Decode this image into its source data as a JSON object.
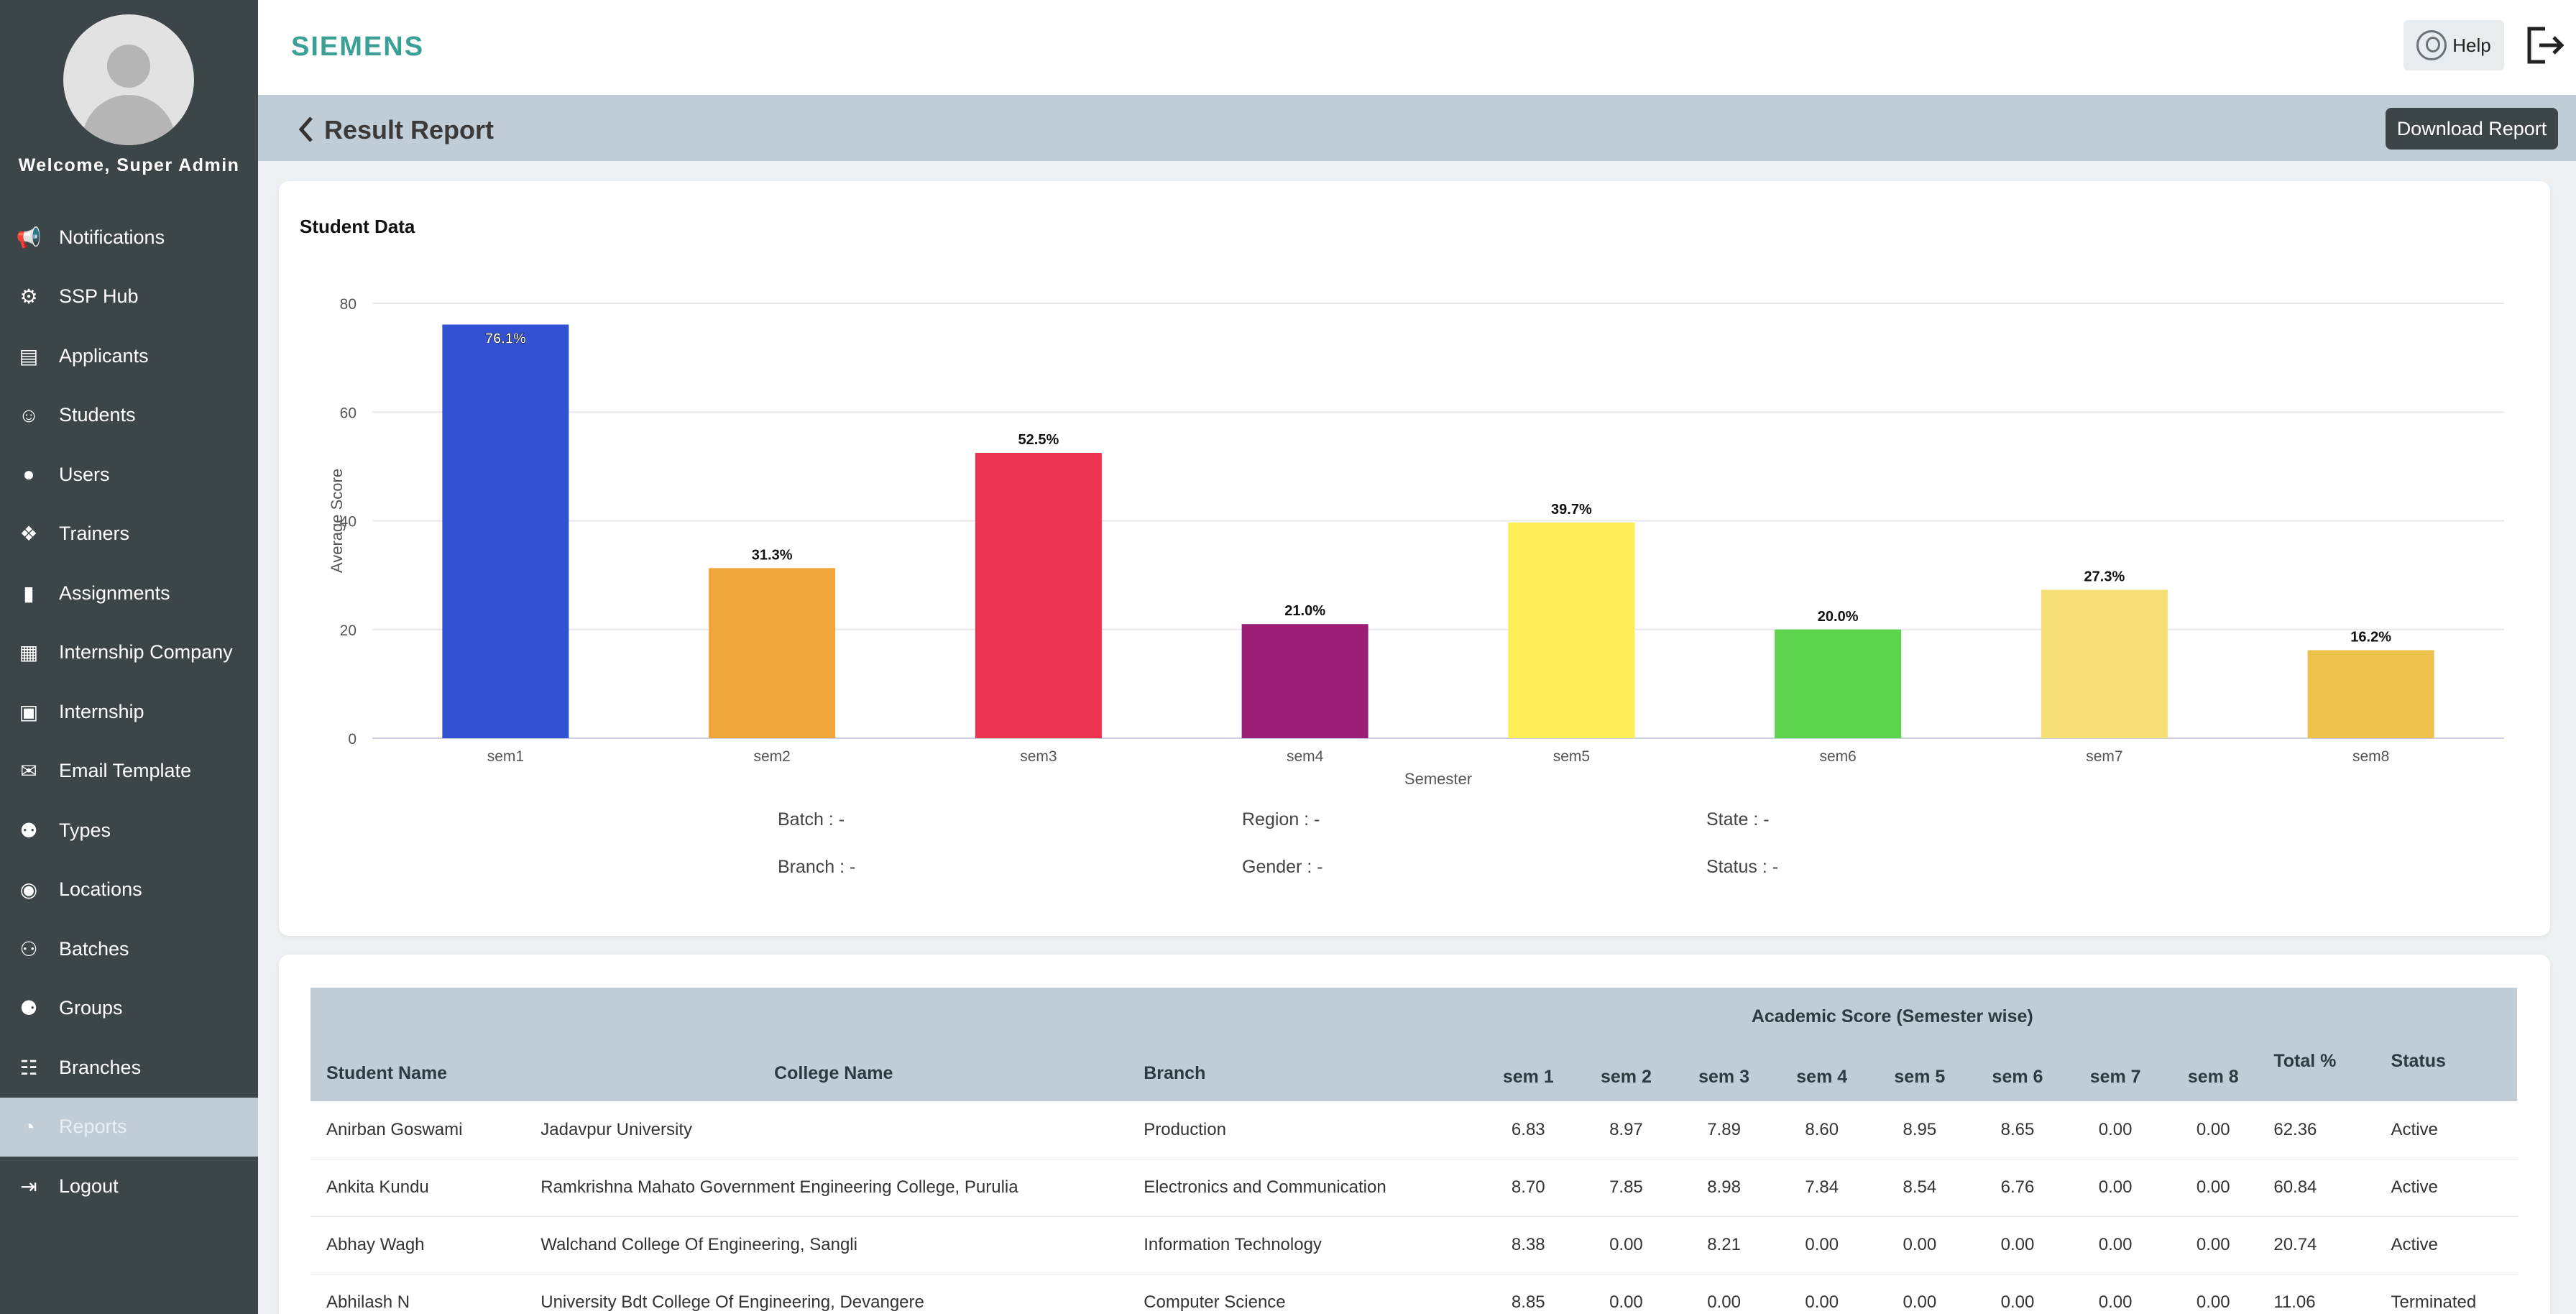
{
  "sidebar": {
    "welcome": "Welcome, Super Admin",
    "items": [
      {
        "label": "Notifications",
        "icon": "megaphone-icon"
      },
      {
        "label": "SSP Hub",
        "icon": "hub-icon"
      },
      {
        "label": "Applicants",
        "icon": "applicants-icon"
      },
      {
        "label": "Students",
        "icon": "students-icon"
      },
      {
        "label": "Users",
        "icon": "user-icon"
      },
      {
        "label": "Trainers",
        "icon": "trainer-icon"
      },
      {
        "label": "Assignments",
        "icon": "document-icon"
      },
      {
        "label": "Internship Company",
        "icon": "building-icon"
      },
      {
        "label": "Internship",
        "icon": "briefcase-icon"
      },
      {
        "label": "Email Template",
        "icon": "envelope-icon"
      },
      {
        "label": "Types",
        "icon": "types-icon"
      },
      {
        "label": "Locations",
        "icon": "location-pin-icon"
      },
      {
        "label": "Batches",
        "icon": "batches-icon"
      },
      {
        "label": "Groups",
        "icon": "groups-icon"
      },
      {
        "label": "Branches",
        "icon": "sitemap-icon"
      },
      {
        "label": "Reports",
        "icon": "pie-chart-icon",
        "active": true
      },
      {
        "label": "Logout",
        "icon": "logout-icon"
      }
    ]
  },
  "header": {
    "logo": "SIEMENS",
    "help_label": "Help"
  },
  "titlebar": {
    "title": "Result Report",
    "download_label": "Download Report"
  },
  "chart_card": {
    "title": "Student Data"
  },
  "chart_data": {
    "type": "bar",
    "categories": [
      "sem1",
      "sem2",
      "sem3",
      "sem4",
      "sem5",
      "sem6",
      "sem7",
      "sem8"
    ],
    "values": [
      76.1,
      31.3,
      52.5,
      21.0,
      39.7,
      20.0,
      27.3,
      16.2
    ],
    "data_labels": [
      "76.1%",
      "31.3%",
      "52.5%",
      "21.0%",
      "39.7%",
      "20.0%",
      "27.3%",
      "16.2%"
    ],
    "colors": [
      "#3251d3",
      "#f0a53b",
      "#ec3350",
      "#9c1f77",
      "#fdee55",
      "#5bd34c",
      "#f6df74",
      "#ecc24d"
    ],
    "xlabel": "Semester",
    "ylabel": "Average Score",
    "ylim": [
      0,
      80
    ],
    "yticks": [
      "0",
      "20",
      "40",
      "60",
      "80"
    ],
    "grid": true
  },
  "filters": {
    "batch": "Batch  :  -",
    "region": "Region :  -",
    "state": "State :  -",
    "branch": "Branch :  -",
    "gender": "Gender :  -",
    "status": "Status :  -"
  },
  "table": {
    "group_header": "Academic Score (Semester wise)",
    "headers": {
      "student_name": "Student Name",
      "college_name": "College Name",
      "branch": "Branch",
      "sems": [
        "sem 1",
        "sem 2",
        "sem 3",
        "sem 4",
        "sem 5",
        "sem 6",
        "sem 7",
        "sem 8"
      ],
      "total": "Total %",
      "status": "Status"
    },
    "rows": [
      {
        "name": "Anirban Goswami",
        "college": "Jadavpur University",
        "branch": "Production",
        "sems": [
          "6.83",
          "8.97",
          "7.89",
          "8.60",
          "8.95",
          "8.65",
          "0.00",
          "0.00"
        ],
        "total": "62.36",
        "status": "Active"
      },
      {
        "name": "Ankita Kundu",
        "college": "Ramkrishna Mahato Government Engineering College, Purulia",
        "branch": "Electronics and Communication",
        "sems": [
          "8.70",
          "7.85",
          "8.98",
          "7.84",
          "8.54",
          "6.76",
          "0.00",
          "0.00"
        ],
        "total": "60.84",
        "status": "Active"
      },
      {
        "name": "Abhay Wagh",
        "college": "Walchand College Of Engineering, Sangli",
        "branch": "Information Technology",
        "sems": [
          "8.38",
          "0.00",
          "8.21",
          "0.00",
          "0.00",
          "0.00",
          "0.00",
          "0.00"
        ],
        "total": "20.74",
        "status": "Active"
      },
      {
        "name": "Abhilash N",
        "college": "University Bdt College Of Engineering, Devangere",
        "branch": "Computer Science",
        "sems": [
          "8.85",
          "0.00",
          "0.00",
          "0.00",
          "0.00",
          "0.00",
          "0.00",
          "0.00"
        ],
        "total": "11.06",
        "status": "Terminated"
      }
    ]
  }
}
